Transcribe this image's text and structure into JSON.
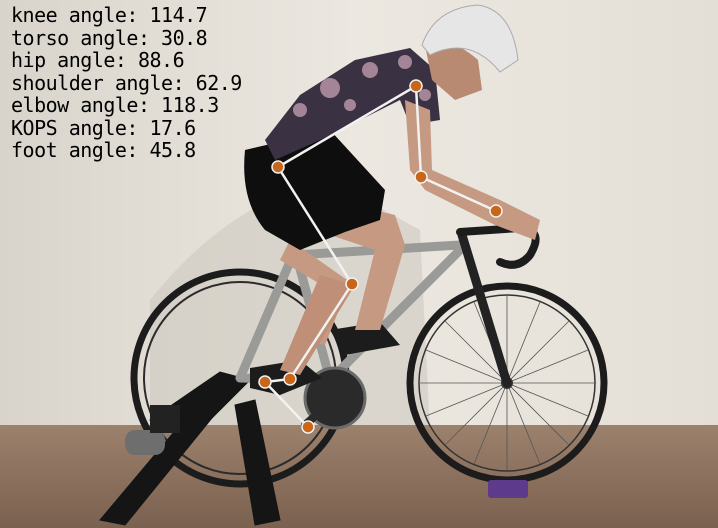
{
  "overlay": {
    "angles": [
      {
        "label": "knee angle:",
        "value": "114.7"
      },
      {
        "label": "torso angle:",
        "value": "30.8"
      },
      {
        "label": "hip angle:",
        "value": "88.6"
      },
      {
        "label": "shoulder angle:",
        "value": "62.9"
      },
      {
        "label": "elbow angle:",
        "value": "118.3"
      },
      {
        "label": "KOPS angle:",
        "value": "17.6"
      },
      {
        "label": "foot angle:",
        "value": "45.8"
      }
    ],
    "keypoint_color": "#c8661a",
    "line_color": "#f2f2f2"
  },
  "scene": {
    "wall_color": "#e9e5dd",
    "floor_color": "#8a6f5c",
    "bike_frame_color": "#9a9a98",
    "jersey_color": "#3a3142"
  }
}
